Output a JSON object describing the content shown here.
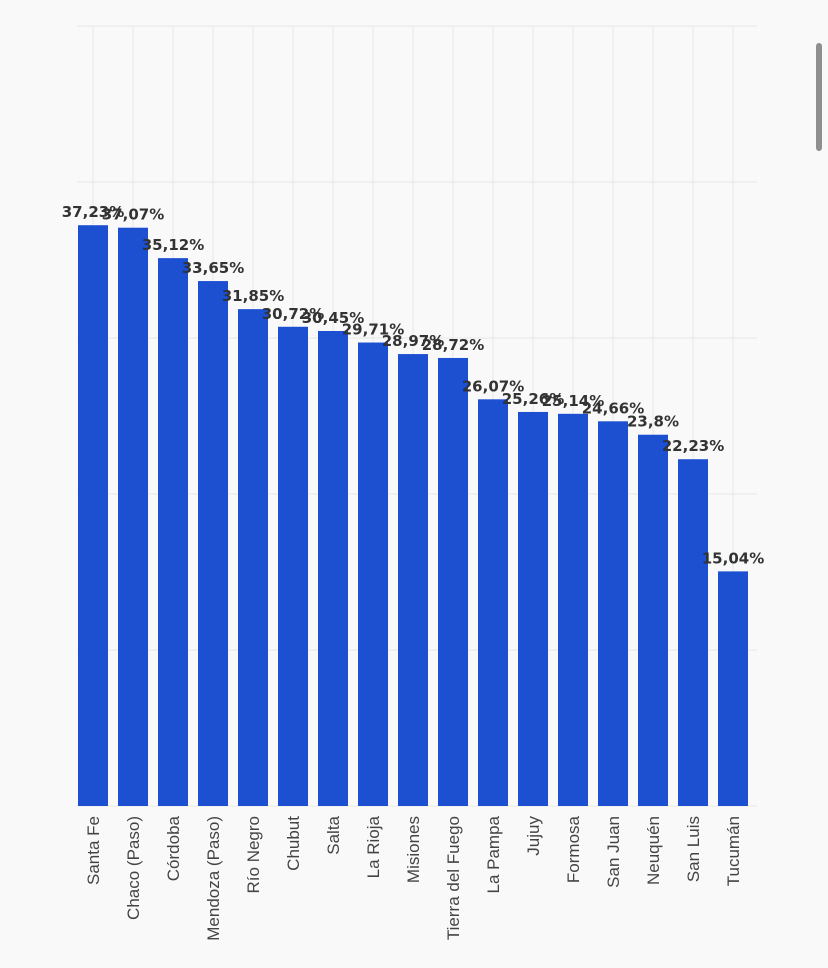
{
  "chart_data": {
    "type": "bar",
    "title": "",
    "xlabel": "",
    "ylabel": "",
    "ylim": [
      0,
      50
    ],
    "grid": true,
    "colors": {
      "bar": "#1d4fd1",
      "label": "#333333",
      "background": "#f9f9f9"
    },
    "categories": [
      "Santa Fe",
      "Chaco (Paso)",
      "Córdoba",
      "Mendoza (Paso)",
      "Río Negro",
      "Chubut",
      "Salta",
      "La Rioja",
      "Misiones",
      "Tierra del Fuego",
      "La Pampa",
      "Jujuy",
      "Formosa",
      "San Juan",
      "Neuquén",
      "San Luis",
      "Tucumán"
    ],
    "values": [
      37.23,
      37.07,
      35.12,
      33.65,
      31.85,
      30.72,
      30.45,
      29.71,
      28.97,
      28.72,
      26.07,
      25.26,
      25.14,
      24.66,
      23.8,
      22.23,
      15.04
    ],
    "labels": [
      "37,23%",
      "37,07%",
      "35,12%",
      "33,65%",
      "31,85%",
      "30,72%",
      "30,45%",
      "29,71%",
      "28,97%",
      "28,72%",
      "26,07%",
      "25,26%",
      "25,14%",
      "24,66%",
      "23,8%",
      "22,23%",
      "15,04%"
    ]
  }
}
